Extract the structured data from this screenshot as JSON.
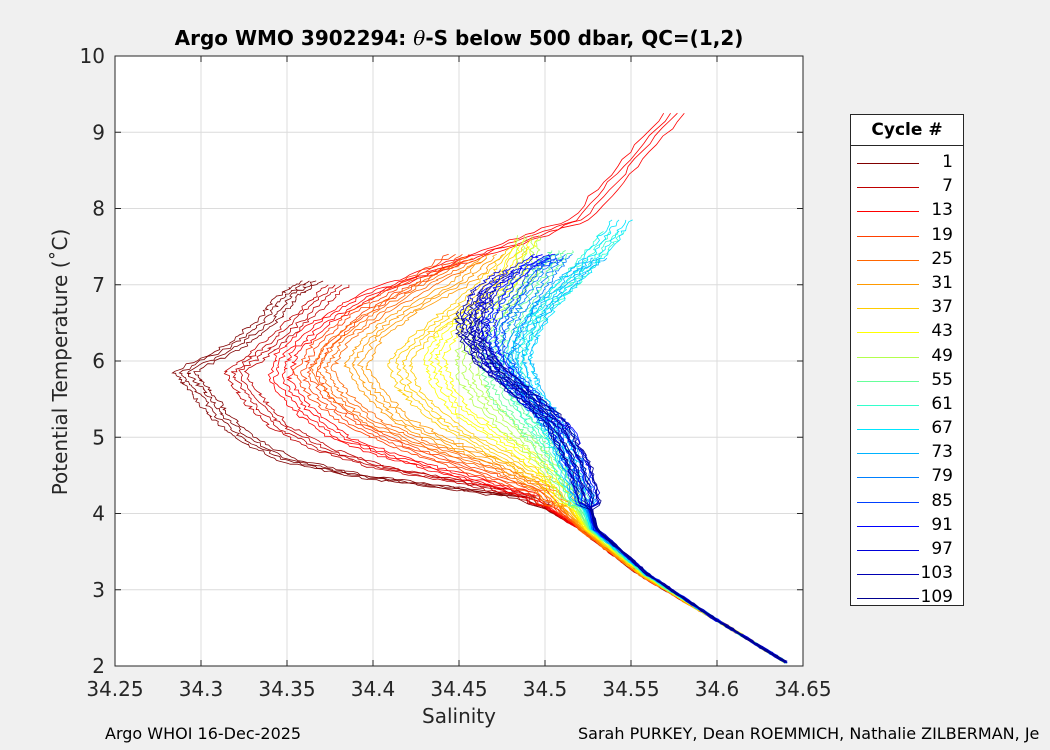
{
  "chart_data": {
    "type": "line",
    "title_prefix": "Argo WMO 3902294: ",
    "title_symbol": "θ",
    "title_suffix": "-S below 500 dbar,  QC=(1,2)",
    "xlabel": "Salinity",
    "ylabel": "Potential Temperature (˚C)",
    "xlim": [
      34.25,
      34.65
    ],
    "ylim": [
      2,
      10
    ],
    "xticks": [
      "34.25",
      "34.3",
      "34.35",
      "34.4",
      "34.45",
      "34.5",
      "34.55",
      "34.6",
      "34.65"
    ],
    "yticks": [
      "2",
      "3",
      "4",
      "5",
      "6",
      "7",
      "8",
      "9",
      "10"
    ],
    "grid": true,
    "legend_title": "Cycle #",
    "legend_position": "outside-right",
    "colormap": "jet",
    "cycles": [
      1,
      7,
      13,
      19,
      25,
      31,
      37,
      43,
      49,
      55,
      61,
      67,
      73,
      79,
      85,
      91,
      97,
      103,
      109
    ],
    "series_colors": [
      "#800000",
      "#bf0000",
      "#ff0000",
      "#ff4000",
      "#ff6600",
      "#ff9900",
      "#ffcc00",
      "#ffff00",
      "#b3ff4d",
      "#66ff99",
      "#33ffcc",
      "#00e6ff",
      "#00b3ff",
      "#0080ff",
      "#0040ff",
      "#0000ff",
      "#0000d9",
      "#0000b3",
      "#00008f"
    ],
    "series": [
      {
        "cycle": 1,
        "points": [
          [
            34.64,
            2.05
          ],
          [
            34.6,
            2.6
          ],
          [
            34.555,
            3.2
          ],
          [
            34.52,
            3.8
          ],
          [
            34.49,
            4.2
          ],
          [
            34.44,
            4.35
          ],
          [
            34.39,
            4.5
          ],
          [
            34.35,
            4.7
          ],
          [
            34.325,
            5.0
          ],
          [
            34.31,
            5.3
          ],
          [
            34.3,
            5.6
          ],
          [
            34.29,
            5.85
          ],
          [
            34.32,
            6.2
          ],
          [
            34.34,
            6.55
          ],
          [
            34.35,
            6.85
          ],
          [
            34.365,
            7.05
          ]
        ]
      },
      {
        "cycle": 7,
        "points": [
          [
            34.64,
            2.05
          ],
          [
            34.6,
            2.6
          ],
          [
            34.555,
            3.2
          ],
          [
            34.52,
            3.8
          ],
          [
            34.49,
            4.22
          ],
          [
            34.45,
            4.42
          ],
          [
            34.405,
            4.6
          ],
          [
            34.37,
            4.85
          ],
          [
            34.345,
            5.15
          ],
          [
            34.33,
            5.5
          ],
          [
            34.32,
            5.85
          ],
          [
            34.34,
            6.2
          ],
          [
            34.36,
            6.6
          ],
          [
            34.38,
            7.0
          ]
        ]
      },
      {
        "cycle": 13,
        "points": [
          [
            34.64,
            2.05
          ],
          [
            34.6,
            2.6
          ],
          [
            34.555,
            3.2
          ],
          [
            34.52,
            3.8
          ],
          [
            34.49,
            4.25
          ],
          [
            34.45,
            4.5
          ],
          [
            34.41,
            4.75
          ],
          [
            34.38,
            5.0
          ],
          [
            34.36,
            5.35
          ],
          [
            34.345,
            5.75
          ],
          [
            34.35,
            6.1
          ],
          [
            34.37,
            6.5
          ],
          [
            34.4,
            6.9
          ],
          [
            34.45,
            7.3
          ],
          [
            34.52,
            7.85
          ],
          [
            34.575,
            9.25
          ]
        ]
      },
      {
        "cycle": 19,
        "points": [
          [
            34.64,
            2.05
          ],
          [
            34.6,
            2.6
          ],
          [
            34.555,
            3.2
          ],
          [
            34.52,
            3.8
          ],
          [
            34.495,
            4.28
          ],
          [
            34.46,
            4.55
          ],
          [
            34.42,
            4.85
          ],
          [
            34.39,
            5.15
          ],
          [
            34.37,
            5.5
          ],
          [
            34.36,
            5.85
          ],
          [
            34.37,
            6.2
          ],
          [
            34.39,
            6.6
          ],
          [
            34.42,
            7.0
          ],
          [
            34.45,
            7.4
          ]
        ]
      },
      {
        "cycle": 25,
        "points": [
          [
            34.64,
            2.05
          ],
          [
            34.6,
            2.6
          ],
          [
            34.555,
            3.2
          ],
          [
            34.52,
            3.8
          ],
          [
            34.5,
            4.3
          ],
          [
            34.47,
            4.6
          ],
          [
            34.43,
            4.9
          ],
          [
            34.4,
            5.2
          ],
          [
            34.38,
            5.55
          ],
          [
            34.37,
            5.9
          ],
          [
            34.38,
            6.25
          ],
          [
            34.4,
            6.6
          ],
          [
            34.43,
            7.0
          ],
          [
            34.46,
            7.35
          ]
        ]
      },
      {
        "cycle": 31,
        "points": [
          [
            34.64,
            2.05
          ],
          [
            34.6,
            2.6
          ],
          [
            34.555,
            3.2
          ],
          [
            34.522,
            3.8
          ],
          [
            34.5,
            4.32
          ],
          [
            34.475,
            4.65
          ],
          [
            34.44,
            4.95
          ],
          [
            34.415,
            5.25
          ],
          [
            34.4,
            5.6
          ],
          [
            34.39,
            5.95
          ],
          [
            34.4,
            6.3
          ],
          [
            34.42,
            6.65
          ],
          [
            34.45,
            7.0
          ],
          [
            34.47,
            7.4
          ]
        ]
      },
      {
        "cycle": 37,
        "points": [
          [
            34.64,
            2.05
          ],
          [
            34.6,
            2.6
          ],
          [
            34.556,
            3.2
          ],
          [
            34.523,
            3.8
          ],
          [
            34.505,
            4.35
          ],
          [
            34.48,
            4.7
          ],
          [
            34.455,
            5.0
          ],
          [
            34.435,
            5.3
          ],
          [
            34.42,
            5.65
          ],
          [
            34.415,
            6.0
          ],
          [
            34.43,
            6.35
          ],
          [
            34.45,
            6.7
          ],
          [
            34.47,
            7.1
          ],
          [
            34.485,
            7.5
          ]
        ]
      },
      {
        "cycle": 43,
        "points": [
          [
            34.64,
            2.05
          ],
          [
            34.6,
            2.6
          ],
          [
            34.557,
            3.2
          ],
          [
            34.524,
            3.8
          ],
          [
            34.507,
            4.38
          ],
          [
            34.49,
            4.75
          ],
          [
            34.47,
            5.05
          ],
          [
            34.45,
            5.35
          ],
          [
            34.44,
            5.7
          ],
          [
            34.435,
            6.05
          ],
          [
            34.445,
            6.4
          ],
          [
            34.465,
            6.75
          ],
          [
            34.48,
            7.1
          ],
          [
            34.49,
            7.6
          ]
        ]
      },
      {
        "cycle": 49,
        "points": [
          [
            34.64,
            2.05
          ],
          [
            34.6,
            2.6
          ],
          [
            34.558,
            3.2
          ],
          [
            34.525,
            3.8
          ],
          [
            34.51,
            4.4
          ],
          [
            34.495,
            4.8
          ],
          [
            34.48,
            5.1
          ],
          [
            34.465,
            5.45
          ],
          [
            34.455,
            5.8
          ],
          [
            34.455,
            6.15
          ],
          [
            34.465,
            6.5
          ],
          [
            34.48,
            6.85
          ],
          [
            34.49,
            7.2
          ],
          [
            34.49,
            7.65
          ]
        ]
      },
      {
        "cycle": 55,
        "points": [
          [
            34.64,
            2.05
          ],
          [
            34.6,
            2.6
          ],
          [
            34.558,
            3.2
          ],
          [
            34.526,
            3.8
          ],
          [
            34.512,
            4.42
          ],
          [
            34.5,
            4.85
          ],
          [
            34.49,
            5.15
          ],
          [
            34.475,
            5.5
          ],
          [
            34.47,
            5.85
          ],
          [
            34.47,
            6.2
          ],
          [
            34.48,
            6.55
          ],
          [
            34.49,
            6.9
          ],
          [
            34.5,
            7.2
          ],
          [
            34.51,
            7.45
          ]
        ]
      },
      {
        "cycle": 61,
        "points": [
          [
            34.64,
            2.05
          ],
          [
            34.6,
            2.6
          ],
          [
            34.559,
            3.2
          ],
          [
            34.527,
            3.8
          ],
          [
            34.515,
            4.45
          ],
          [
            34.505,
            4.9
          ],
          [
            34.495,
            5.2
          ],
          [
            34.485,
            5.55
          ],
          [
            34.48,
            5.9
          ],
          [
            34.485,
            6.25
          ],
          [
            34.495,
            6.6
          ],
          [
            34.51,
            6.95
          ],
          [
            34.525,
            7.3
          ],
          [
            34.54,
            7.7
          ]
        ]
      },
      {
        "cycle": 67,
        "points": [
          [
            34.64,
            2.05
          ],
          [
            34.6,
            2.6
          ],
          [
            34.559,
            3.2
          ],
          [
            34.527,
            3.8
          ],
          [
            34.517,
            4.48
          ],
          [
            34.508,
            4.95
          ],
          [
            34.5,
            5.3
          ],
          [
            34.49,
            5.65
          ],
          [
            34.485,
            6.0
          ],
          [
            34.49,
            6.35
          ],
          [
            34.5,
            6.7
          ],
          [
            34.515,
            7.05
          ],
          [
            34.53,
            7.4
          ],
          [
            34.545,
            7.85
          ]
        ]
      },
      {
        "cycle": 73,
        "points": [
          [
            34.64,
            2.05
          ],
          [
            34.6,
            2.6
          ],
          [
            34.56,
            3.2
          ],
          [
            34.528,
            3.8
          ],
          [
            34.518,
            4.5
          ],
          [
            34.51,
            5.0
          ],
          [
            34.5,
            5.35
          ],
          [
            34.49,
            5.7
          ],
          [
            34.485,
            6.05
          ],
          [
            34.49,
            6.4
          ],
          [
            34.5,
            6.75
          ],
          [
            34.515,
            7.1
          ],
          [
            34.53,
            7.35
          ]
        ]
      },
      {
        "cycle": 79,
        "points": [
          [
            34.64,
            2.05
          ],
          [
            34.6,
            2.6
          ],
          [
            34.56,
            3.2
          ],
          [
            34.528,
            3.8
          ],
          [
            34.518,
            4.52
          ],
          [
            34.508,
            5.05
          ],
          [
            34.495,
            5.4
          ],
          [
            34.48,
            5.75
          ],
          [
            34.475,
            6.1
          ],
          [
            34.48,
            6.45
          ],
          [
            34.49,
            6.8
          ],
          [
            34.5,
            7.15
          ],
          [
            34.51,
            7.4
          ]
        ]
      },
      {
        "cycle": 85,
        "points": [
          [
            34.64,
            2.05
          ],
          [
            34.6,
            2.6
          ],
          [
            34.56,
            3.2
          ],
          [
            34.529,
            3.8
          ],
          [
            34.52,
            4.55
          ],
          [
            34.51,
            5.1
          ],
          [
            34.495,
            5.45
          ],
          [
            34.48,
            5.8
          ],
          [
            34.47,
            6.15
          ],
          [
            34.47,
            6.5
          ],
          [
            34.48,
            6.85
          ],
          [
            34.49,
            7.2
          ],
          [
            34.505,
            7.35
          ]
        ]
      },
      {
        "cycle": 91,
        "points": [
          [
            34.64,
            2.05
          ],
          [
            34.6,
            2.6
          ],
          [
            34.56,
            3.2
          ],
          [
            34.529,
            3.8
          ],
          [
            34.52,
            4.57
          ],
          [
            34.51,
            5.12
          ],
          [
            34.49,
            5.5
          ],
          [
            34.475,
            5.85
          ],
          [
            34.465,
            6.2
          ],
          [
            34.465,
            6.55
          ],
          [
            34.47,
            6.9
          ],
          [
            34.485,
            7.2
          ],
          [
            34.5,
            7.4
          ]
        ]
      },
      {
        "cycle": 97,
        "points": [
          [
            34.64,
            2.05
          ],
          [
            34.6,
            2.6
          ],
          [
            34.56,
            3.2
          ],
          [
            34.53,
            3.8
          ],
          [
            34.52,
            4.6
          ],
          [
            34.508,
            5.15
          ],
          [
            34.488,
            5.55
          ],
          [
            34.47,
            5.9
          ],
          [
            34.46,
            6.25
          ],
          [
            34.46,
            6.6
          ],
          [
            34.465,
            6.95
          ],
          [
            34.48,
            7.2
          ]
        ]
      },
      {
        "cycle": 103,
        "points": [
          [
            34.64,
            2.05
          ],
          [
            34.6,
            2.6
          ],
          [
            34.56,
            3.2
          ],
          [
            34.53,
            3.8
          ],
          [
            34.52,
            4.62
          ],
          [
            34.505,
            5.2
          ],
          [
            34.485,
            5.6
          ],
          [
            34.468,
            5.95
          ],
          [
            34.458,
            6.3
          ],
          [
            34.458,
            6.65
          ],
          [
            34.465,
            6.95
          ]
        ]
      },
      {
        "cycle": 109,
        "points": [
          [
            34.64,
            2.05
          ],
          [
            34.6,
            2.6
          ],
          [
            34.56,
            3.2
          ],
          [
            34.53,
            3.8
          ],
          [
            34.52,
            4.65
          ],
          [
            34.505,
            5.25
          ],
          [
            34.484,
            5.65
          ],
          [
            34.465,
            6.0
          ],
          [
            34.455,
            6.35
          ],
          [
            34.455,
            6.65
          ]
        ]
      }
    ]
  },
  "footer": {
    "left": "Argo WHOI 16-Dec-2025",
    "right": "Sarah PURKEY, Dean ROEMMICH, Nathalie ZILBERMAN, Je"
  }
}
